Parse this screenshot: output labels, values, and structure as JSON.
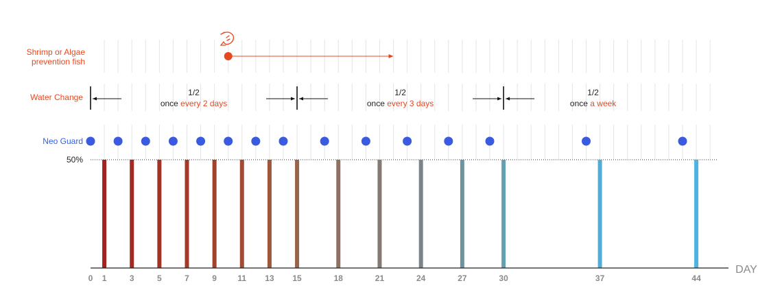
{
  "chart_data": {
    "type": "bar",
    "xlabel": "DAY",
    "x_range": [
      0,
      46
    ],
    "x_ticks": [
      "0",
      "1",
      "3",
      "5",
      "7",
      "9",
      "11",
      "13",
      "15",
      "18",
      "21",
      "24",
      "27",
      "30",
      "37",
      "44"
    ],
    "y_reference_label": "50%",
    "bar_days": [
      1,
      3,
      5,
      7,
      9,
      11,
      13,
      15,
      18,
      21,
      24,
      27,
      30,
      37,
      44
    ],
    "bar_values": [
      50,
      50,
      50,
      50,
      50,
      50,
      50,
      50,
      50,
      50,
      50,
      50,
      50,
      50,
      50
    ],
    "bar_colors": [
      "#a3231f",
      "#a22a22",
      "#a23226",
      "#a23a2a",
      "#a1422e",
      "#a04c34",
      "#9e573d",
      "#996448",
      "#8f7062",
      "#857a73",
      "#7b8488",
      "#6e939f",
      "#65a0b2",
      "#54acd4",
      "#4db3e0"
    ],
    "neo_guard_days": [
      0,
      2,
      4,
      6,
      8,
      10,
      12,
      14,
      17,
      20,
      23,
      26,
      29,
      36,
      43
    ],
    "shrimp_day": 10,
    "shrimp_arrow_end_day": 22,
    "water_change_boundaries": [
      0,
      15,
      30
    ]
  },
  "rows": {
    "shrimp_line1": "Shrimp or Algae",
    "shrimp_line2": "prevention fish",
    "water_change": "Water Change",
    "neo_guard": "Neo Guard"
  },
  "segments": [
    {
      "fraction": "1/2",
      "prefix": "once ",
      "highlight": "every 2 days"
    },
    {
      "fraction": "1/2",
      "prefix": "once ",
      "highlight": "every 3 days"
    },
    {
      "fraction": "1/2",
      "prefix": "once ",
      "highlight": "a week"
    }
  ],
  "colors": {
    "orange": "#e8481f",
    "blue": "#2f5fe6",
    "dot_blue": "#3a5be0",
    "grid": "#e4e4e4",
    "axis": "#222222"
  },
  "icons": {
    "shrimp": "shrimp-icon"
  }
}
